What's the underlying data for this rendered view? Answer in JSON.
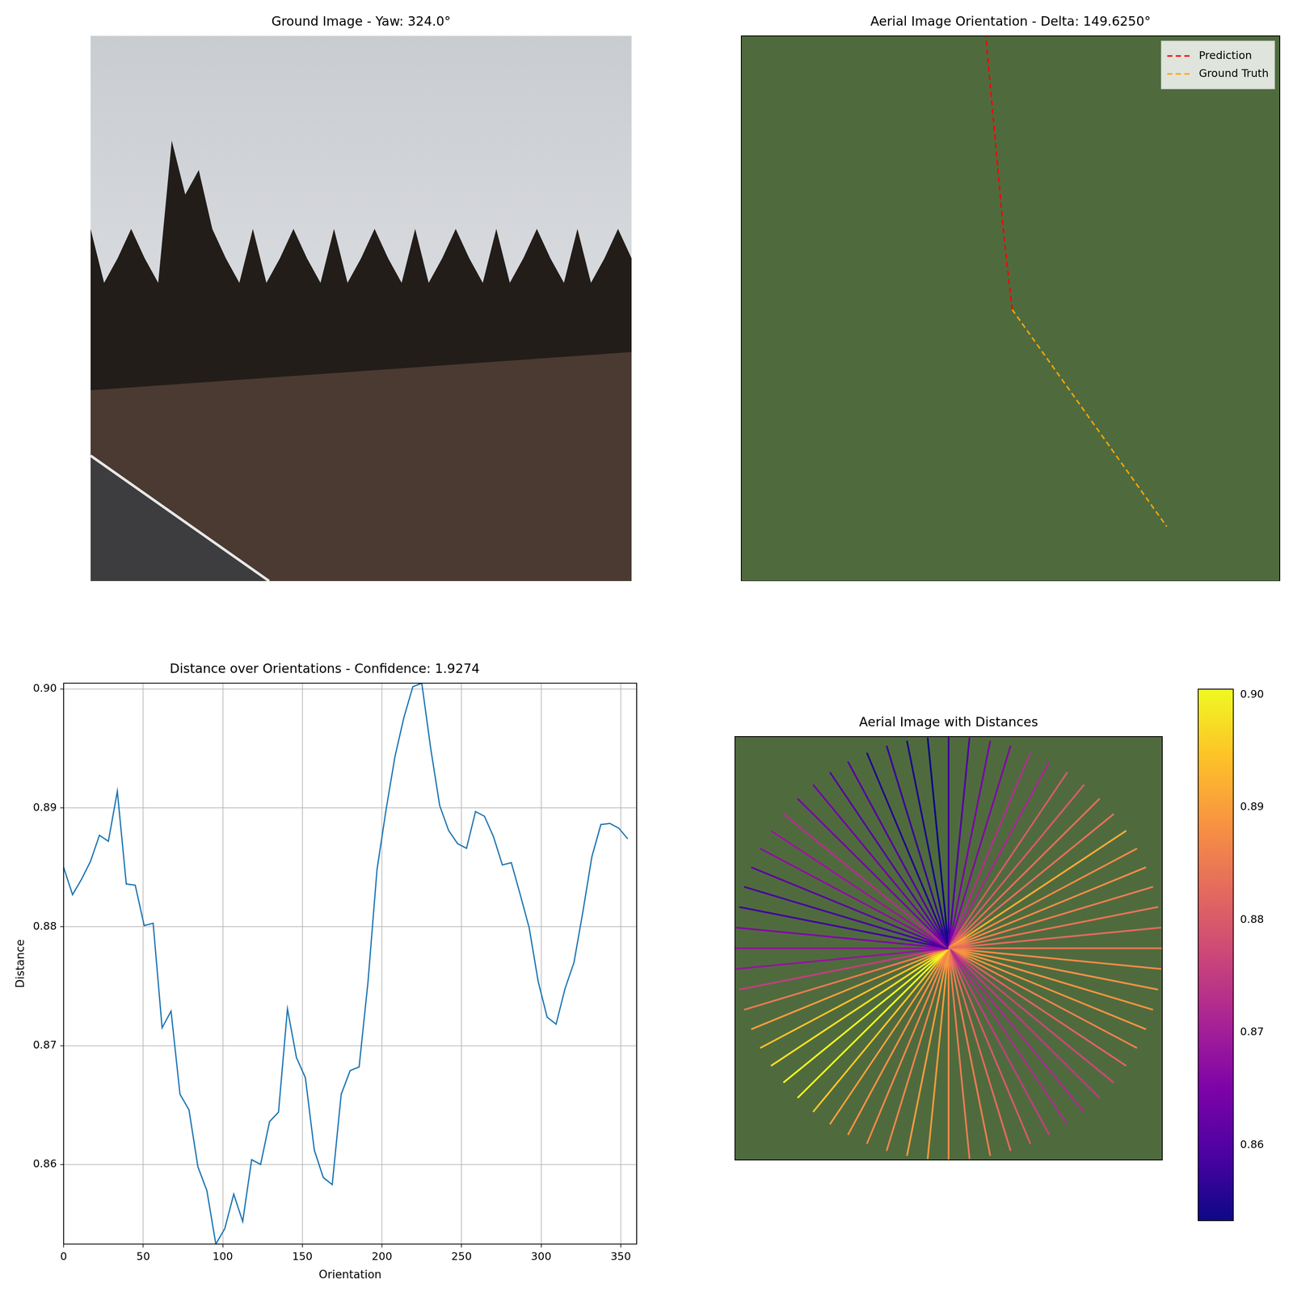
{
  "chart_data": [
    {
      "type": "image",
      "title": "Ground Image - Yaw: 324.0°",
      "tick_labels": false
    },
    {
      "type": "line",
      "title": "Aerial Image Orientation - Delta: 149.6250°",
      "tick_labels": false,
      "grid": false,
      "xlim": [
        0,
        100
      ],
      "ylim": [
        100,
        0
      ],
      "legend": "upper right",
      "series": [
        {
          "name": "Prediction",
          "color": "#ff0000",
          "line_style": "dashed",
          "x": [
            50.3,
            48.8,
            45.4
          ],
          "y": [
            50.2,
            37.1,
            0
          ]
        },
        {
          "name": "Ground Truth",
          "color": "#ffa500",
          "line_style": "dashed",
          "x": [
            50.3,
            79.0
          ],
          "y": [
            50.2,
            90.0
          ]
        }
      ]
    },
    {
      "type": "line",
      "title": "Distance over Orientations - Confidence: 1.9274",
      "x_label": "Orientation",
      "y_label": "Distance",
      "grid": true,
      "color": "#1f77b4",
      "xlim": [
        0,
        360
      ],
      "ylim": [
        0.8533,
        0.9005
      ],
      "xticks": [
        0,
        50,
        100,
        150,
        200,
        250,
        300,
        350
      ],
      "yticks": [
        0.86,
        0.87,
        0.88,
        0.89,
        {
          "value": 0.9,
          "label": "0.90"
        }
      ],
      "x": [
        0,
        5.625,
        11.25,
        16.875,
        22.5,
        28.125,
        33.75,
        39.375,
        45,
        50.625,
        56.25,
        61.875,
        67.5,
        73.125,
        78.75,
        84.375,
        90,
        95.625,
        101.25,
        106.875,
        112.5,
        118.125,
        123.75,
        129.375,
        135,
        140.625,
        146.25,
        151.875,
        157.5,
        163.125,
        168.75,
        174.375,
        180,
        185.625,
        191.25,
        196.875,
        202.5,
        208.125,
        213.75,
        219.375,
        225,
        230.625,
        236.25,
        241.875,
        247.5,
        253.125,
        258.75,
        264.375,
        270,
        275.625,
        281.25,
        286.875,
        292.5,
        298.125,
        303.75,
        309.375,
        315,
        320.625,
        326.25,
        331.875,
        337.5,
        343.125,
        348.75,
        354.375
      ],
      "values": [
        0.885,
        0.8827,
        0.884,
        0.8855,
        0.8877,
        0.8872,
        0.8914,
        0.8836,
        0.8835,
        0.8801,
        0.8803,
        0.8715,
        0.8729,
        0.8659,
        0.8646,
        0.8598,
        0.8578,
        0.8533,
        0.8546,
        0.8575,
        0.8552,
        0.8604,
        0.86,
        0.8636,
        0.8644,
        0.8731,
        0.869,
        0.8673,
        0.8612,
        0.8589,
        0.8583,
        0.8659,
        0.8679,
        0.8682,
        0.8754,
        0.8848,
        0.8898,
        0.8943,
        0.8976,
        0.9002,
        0.9005,
        0.895,
        0.8902,
        0.8881,
        0.887,
        0.8866,
        0.8897,
        0.8893,
        0.8876,
        0.8852,
        0.8854,
        0.8827,
        0.8799,
        0.8754,
        0.8724,
        0.8718,
        0.8748,
        0.877,
        0.8813,
        0.8859,
        0.8886,
        0.8887,
        0.8883,
        0.8874
      ]
    },
    {
      "type": "rays",
      "title": "Aerial Image with Distances",
      "tick_labels": false,
      "grid": false,
      "xlim": [
        -1,
        1
      ],
      "ylim": [
        -1,
        1
      ],
      "color_range": [
        0.8533,
        0.9005
      ],
      "color_ticks": [
        0.86,
        0.87,
        0.88,
        0.89,
        {
          "value": 0.9,
          "label": "0.90"
        }
      ],
      "x": [
        0,
        5.625,
        11.25,
        16.875,
        22.5,
        28.125,
        33.75,
        39.375,
        45,
        50.625,
        56.25,
        61.875,
        67.5,
        73.125,
        78.75,
        84.375,
        90,
        95.625,
        101.25,
        106.875,
        112.5,
        118.125,
        123.75,
        129.375,
        135,
        140.625,
        146.25,
        151.875,
        157.5,
        163.125,
        168.75,
        174.375,
        180,
        185.625,
        191.25,
        196.875,
        202.5,
        208.125,
        213.75,
        219.375,
        225,
        230.625,
        236.25,
        241.875,
        247.5,
        253.125,
        258.75,
        264.375,
        270,
        275.625,
        281.25,
        286.875,
        292.5,
        298.125,
        303.75,
        309.375,
        315,
        320.625,
        326.25,
        331.875,
        337.5,
        343.125,
        348.75,
        354.375
      ],
      "values": [
        0.885,
        0.8827,
        0.884,
        0.8855,
        0.8877,
        0.8872,
        0.8914,
        0.8836,
        0.8835,
        0.8801,
        0.8803,
        0.8715,
        0.8729,
        0.8659,
        0.8646,
        0.8598,
        0.8578,
        0.8533,
        0.8546,
        0.8575,
        0.8552,
        0.8604,
        0.86,
        0.8636,
        0.8644,
        0.8731,
        0.869,
        0.8673,
        0.8612,
        0.8589,
        0.8583,
        0.8659,
        0.8679,
        0.8682,
        0.8754,
        0.8848,
        0.8898,
        0.8943,
        0.8976,
        0.9002,
        0.9005,
        0.895,
        0.8902,
        0.8881,
        0.887,
        0.8866,
        0.8897,
        0.8893,
        0.8876,
        0.8852,
        0.8854,
        0.8827,
        0.8799,
        0.8754,
        0.8724,
        0.8718,
        0.8748,
        0.877,
        0.8813,
        0.8859,
        0.8886,
        0.8887,
        0.8883,
        0.8874
      ]
    }
  ]
}
